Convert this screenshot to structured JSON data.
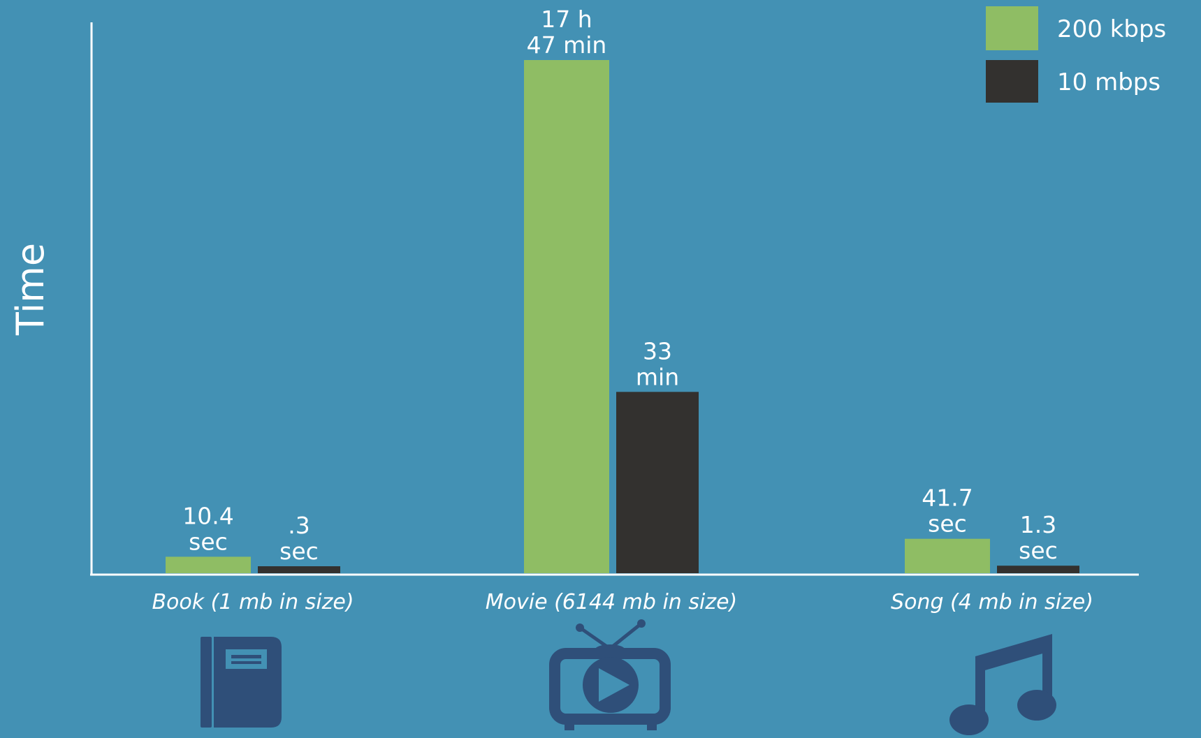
{
  "colors": {
    "background": "#4391b4",
    "series_200kbps": "#8fbd64",
    "series_10mbps": "#33312f",
    "icon": "#2f4f79",
    "axis": "#ffffff",
    "text": "#ffffff"
  },
  "icons": [
    "book-icon",
    "tv-play-icon",
    "music-note-icon"
  ],
  "chart_data": {
    "type": "bar",
    "title": "",
    "xlabel": "",
    "ylabel": "Time",
    "categories": [
      "Book (1 mb in size)",
      "Movie (6144 mb in size)",
      "Song (4 mb in size)"
    ],
    "units": "seconds",
    "series": [
      {
        "name": "200 kbps",
        "values": [
          10.4,
          64020,
          41.7
        ],
        "labels": [
          [
            "10.4",
            "sec"
          ],
          [
            "17 h",
            "47 min"
          ],
          [
            "41.7",
            "sec"
          ]
        ]
      },
      {
        "name": "10 mbps",
        "values": [
          0.3,
          1980,
          1.3
        ],
        "labels": [
          [
            ".3",
            "sec"
          ],
          [
            "33",
            "min"
          ],
          [
            "1.3",
            "sec"
          ]
        ]
      }
    ],
    "ylim": [
      0,
      64020
    ],
    "scale_note": "",
    "grid": false,
    "legend": "top-right"
  }
}
